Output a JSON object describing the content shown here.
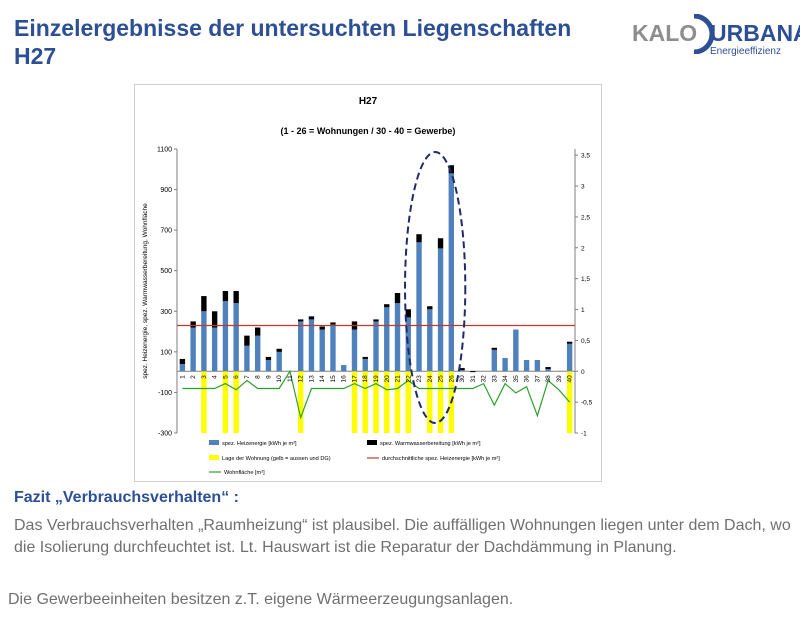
{
  "header": {
    "title_line1": "Einzelergebnisse der untersuchten Liegenschaften",
    "title_line2": "H27"
  },
  "logo": {
    "kalo": "KALO",
    "urbana": "URBANA",
    "sub": "Energieeffizienz"
  },
  "colors": {
    "heat": "#4f81bd",
    "warm": "#000000",
    "roof": "#ffff00",
    "avg": "#c0392b",
    "area": "#2ca02c",
    "ellipse": "#1f2a6b",
    "title": "#2d4f95",
    "text": "#707070"
  },
  "chart_data": {
    "type": "bar",
    "title": "H27",
    "subtitle": "(1 - 26 = Wohnungen / 30 - 40 = Gewerbe)",
    "ylabel": "spez. Heizenergie, spez. Warmwasserbereitung, Wohnfläche",
    "ylim": [
      -300,
      1100
    ],
    "y_ticks": [
      "1100",
      "900",
      "700",
      "500",
      "300",
      "100",
      "-100",
      "-300"
    ],
    "y2lim": [
      -1,
      3.6
    ],
    "y2_ticks": [
      "3,5",
      "3",
      "2,5",
      "2",
      "1,5",
      "1",
      "0,5",
      "0",
      "-0,5",
      "-1"
    ],
    "categories": [
      "1",
      "2",
      "3",
      "4",
      "5",
      "6",
      "7",
      "8",
      "9",
      "10",
      "11",
      "12",
      "13",
      "14",
      "15",
      "16",
      "17",
      "18",
      "19",
      "20",
      "21",
      "22",
      "23",
      "24",
      "25",
      "26",
      "30",
      "31",
      "32",
      "33",
      "34",
      "35",
      "36",
      "37",
      "38",
      "39",
      "40"
    ],
    "series": [
      {
        "name": "spez. Heizenergie [kWh je m²]",
        "type": "bar",
        "values": [
          40,
          220,
          300,
          220,
          350,
          340,
          130,
          180,
          60,
          100,
          0,
          250,
          260,
          210,
          235,
          35,
          210,
          65,
          250,
          320,
          340,
          270,
          640,
          310,
          610,
          980,
          10,
          0,
          0,
          110,
          70,
          210,
          60,
          60,
          15,
          0,
          140
        ]
      },
      {
        "name": "spez. Warmwasserbereitung [kWh je m²]",
        "type": "bar-stacked",
        "values": [
          25,
          30,
          75,
          80,
          50,
          60,
          50,
          40,
          15,
          15,
          0,
          10,
          15,
          15,
          10,
          0,
          40,
          10,
          10,
          15,
          50,
          40,
          40,
          15,
          50,
          40,
          10,
          5,
          0,
          10,
          0,
          0,
          0,
          0,
          10,
          0,
          10
        ]
      },
      {
        "name": "Lage der Wohnung (gelb = aussen und DG)",
        "type": "flag-bar",
        "values": [
          0,
          0,
          1,
          0,
          1,
          1,
          0,
          0,
          0,
          0,
          0,
          1,
          0,
          0,
          0,
          0,
          1,
          1,
          1,
          1,
          1,
          1,
          0,
          1,
          1,
          1,
          0,
          0,
          0,
          0,
          0,
          0,
          0,
          0,
          0,
          0,
          1
        ]
      },
      {
        "name": "durchschnittliche spez. Heizenergie [kWh je m²]",
        "type": "hline",
        "value": 230
      },
      {
        "name": "Wohnfläche [m²]",
        "type": "line-secondary",
        "values": [
          -0.28,
          -0.28,
          -0.28,
          -0.28,
          -0.2,
          -0.3,
          -0.15,
          -0.28,
          -0.28,
          -0.28,
          0,
          -0.75,
          -0.28,
          -0.28,
          -0.28,
          -0.28,
          -0.2,
          -0.28,
          -0.2,
          -0.3,
          -0.28,
          -0.15,
          -0.28,
          -0.28,
          -0.28,
          -0.28,
          -0.28,
          -0.28,
          -0.2,
          -0.55,
          -0.2,
          -0.35,
          -0.25,
          -0.72,
          -0.15,
          -0.3,
          -0.5
        ]
      }
    ],
    "grid": false,
    "legend_placement": "bottom"
  },
  "fazit": {
    "heading": "Fazit „Verbrauchsverhalten“ :",
    "text": "Das Verbrauchsverhalten „Raumheizung“ ist plausibel. Die auffälligen Wohnungen liegen unter dem Dach, wo die Isolierung durchfeuchtet ist. Lt. Hauswart ist die Reparatur der Dachdämmung in Planung.",
    "text2": "Die Gewerbeeinheiten besitzen z.T. eigene Wärmeerzeugungsanlagen."
  }
}
